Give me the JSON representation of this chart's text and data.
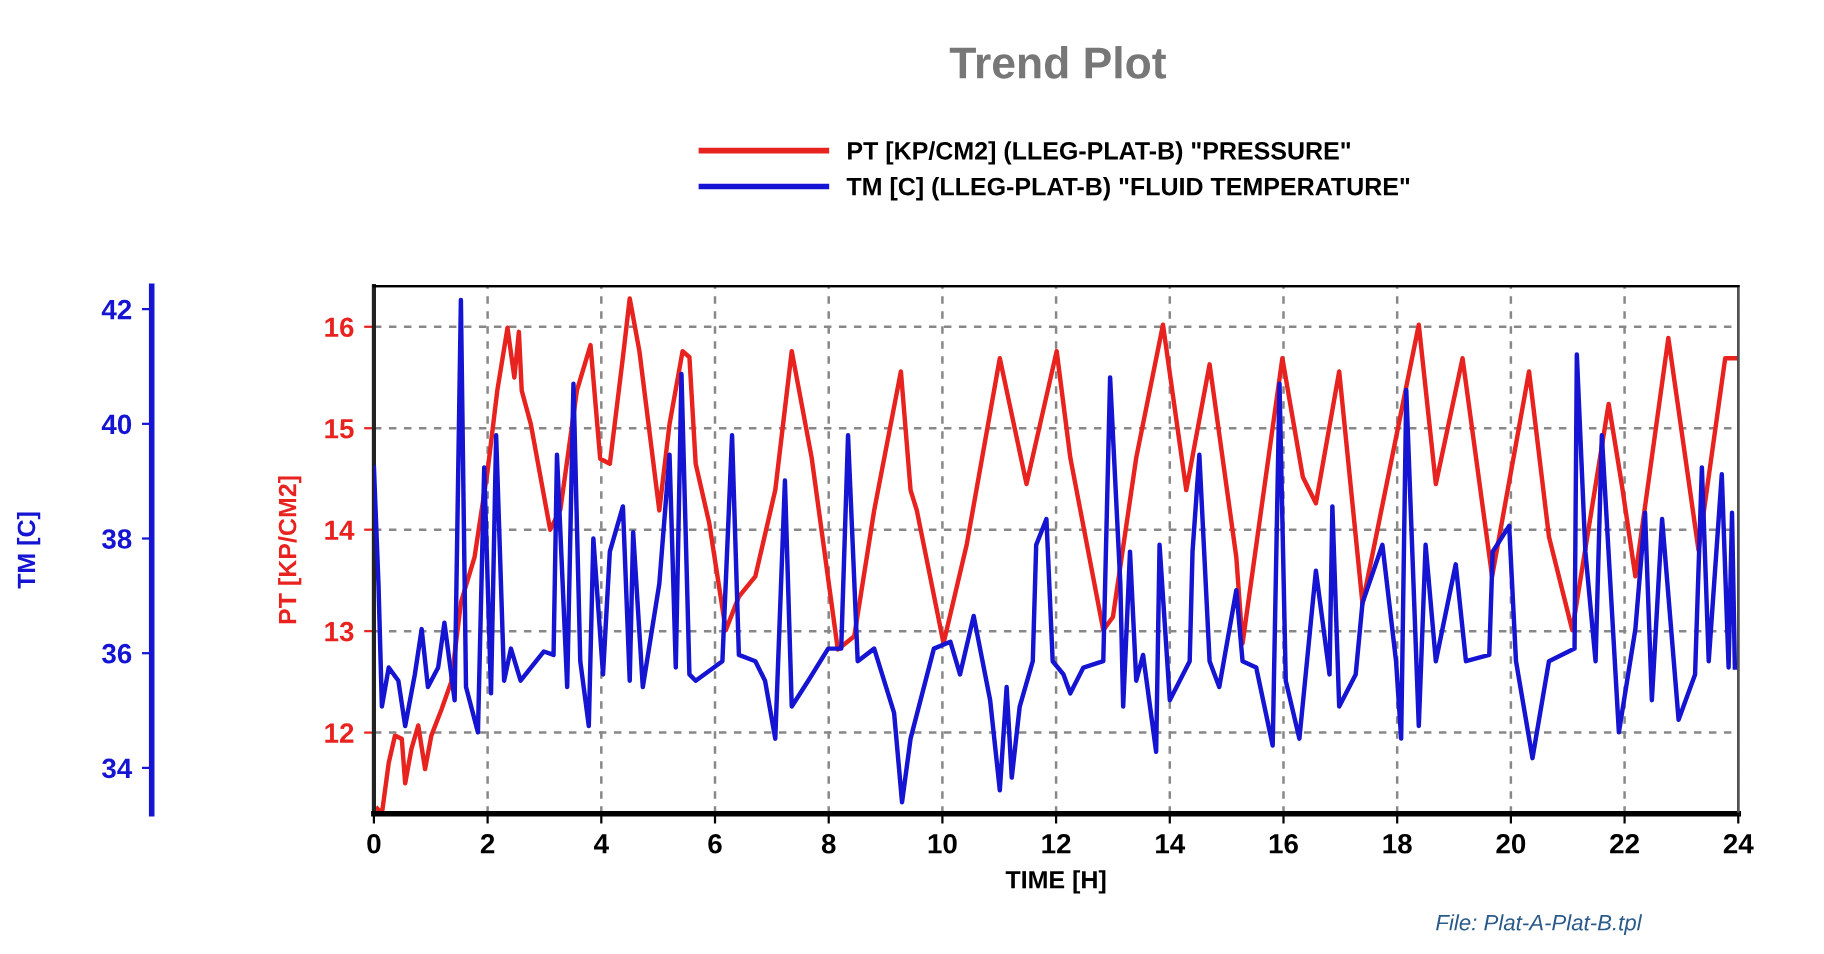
{
  "chart_data": {
    "type": "line",
    "title": "Trend Plot",
    "xlabel": "TIME [H]",
    "ylabel": "PT [KP/CM2]",
    "y2label": "TM [C]",
    "annotations": [
      "File: Plat-A-Plat-B.tpl"
    ],
    "xlim": [
      0,
      24
    ],
    "xticks": [
      0,
      2,
      4,
      6,
      8,
      10,
      12,
      14,
      16,
      18,
      20,
      22,
      24
    ],
    "ylim": [
      11.2,
      16.4
    ],
    "yticks": [
      12,
      13,
      14,
      15,
      16
    ],
    "y2lim": [
      33.2,
      42.4
    ],
    "y2ticks": [
      34,
      36,
      38,
      40,
      42
    ],
    "grid": true,
    "legend": "top",
    "line_style": "solid",
    "series": [
      {
        "name": "PT [KP/CM2] (LLEG-PLAT-B) \"PRESSURE\"",
        "color": "#e8231f",
        "x": [
          0.06,
          0.14,
          0.26,
          0.37,
          0.49,
          0.55,
          0.66,
          0.78,
          0.9,
          1.01,
          1.19,
          1.36,
          1.53,
          1.77,
          2.0,
          2.17,
          2.35,
          2.47,
          2.55,
          2.6,
          2.76,
          3.1,
          3.28,
          3.57,
          3.81,
          3.98,
          4.15,
          4.38,
          4.5,
          4.67,
          5.02,
          5.2,
          5.43,
          5.55,
          5.66,
          5.9,
          6.19,
          6.42,
          6.71,
          7.06,
          7.35,
          7.7,
          8.16,
          8.45,
          8.8,
          9.27,
          9.44,
          9.55,
          10.02,
          10.43,
          11.01,
          11.48,
          12.01,
          12.25,
          12.83,
          13.0,
          13.41,
          13.88,
          14.29,
          14.7,
          15.17,
          15.28,
          15.98,
          16.34,
          16.57,
          16.98,
          17.39,
          18.38,
          18.68,
          19.15,
          19.67,
          20.32,
          20.67,
          21.08,
          21.72,
          21.95,
          22.19,
          22.77,
          23.3,
          23.77,
          23.94
        ],
        "values": [
          11.25,
          11.2,
          11.7,
          11.97,
          11.94,
          11.5,
          11.84,
          12.07,
          11.64,
          11.97,
          12.23,
          12.5,
          13.28,
          13.73,
          14.58,
          15.37,
          15.99,
          15.5,
          15.95,
          15.37,
          15.04,
          14.0,
          14.2,
          15.37,
          15.82,
          14.7,
          14.65,
          15.7,
          16.28,
          15.76,
          14.19,
          15.04,
          15.76,
          15.7,
          14.65,
          14.06,
          13.01,
          13.34,
          13.54,
          14.39,
          15.76,
          14.71,
          12.82,
          12.95,
          14.19,
          15.56,
          14.39,
          14.19,
          12.88,
          13.86,
          15.69,
          14.45,
          15.76,
          14.71,
          13.01,
          13.14,
          14.71,
          16.02,
          14.39,
          15.63,
          13.73,
          12.88,
          15.69,
          14.52,
          14.26,
          15.56,
          13.27,
          16.02,
          14.45,
          15.69,
          13.54,
          15.56,
          13.93,
          13.01,
          15.24,
          14.45,
          13.54,
          15.89,
          13.8,
          15.69,
          15.69
        ]
      },
      {
        "name": "TM [C] (LLEG-PLAT-B) \"FLUID TEMPERATURE\"",
        "color": "#1414d2",
        "axis": "y2",
        "x": [
          0,
          0.08,
          0.14,
          0.26,
          0.43,
          0.55,
          0.72,
          0.84,
          0.95,
          1.13,
          1.24,
          1.42,
          1.53,
          1.62,
          1.83,
          1.94,
          2.06,
          2.15,
          2.29,
          2.41,
          2.58,
          2.99,
          3.16,
          3.22,
          3.4,
          3.51,
          3.63,
          3.78,
          3.86,
          4.03,
          4.15,
          4.38,
          4.5,
          4.56,
          4.73,
          5.02,
          5.2,
          5.31,
          5.41,
          5.55,
          5.66,
          6.13,
          6.3,
          6.42,
          6.71,
          6.88,
          7.06,
          7.23,
          7.35,
          7.64,
          7.99,
          8.22,
          8.34,
          8.51,
          8.8,
          9.15,
          9.29,
          9.44,
          9.85,
          10.14,
          10.31,
          10.55,
          10.84,
          11.01,
          11.13,
          11.22,
          11.36,
          11.59,
          11.65,
          11.83,
          11.94,
          12.13,
          12.25,
          12.48,
          12.83,
          12.95,
          13.13,
          13.18,
          13.3,
          13.41,
          13.53,
          13.76,
          13.82,
          14.0,
          14.35,
          14.4,
          14.52,
          14.7,
          14.87,
          15.17,
          15.28,
          15.52,
          15.81,
          15.93,
          16.04,
          16.28,
          16.57,
          16.81,
          16.86,
          16.98,
          17.27,
          17.39,
          17.74,
          17.98,
          18.07,
          18.16,
          18.38,
          18.5,
          18.68,
          19.03,
          19.21,
          19.62,
          19.68,
          19.97,
          20.09,
          20.38,
          20.67,
          21.12,
          21.16,
          21.31,
          21.49,
          21.6,
          21.9,
          22.19,
          22.36,
          22.48,
          22.66,
          22.95,
          23.24,
          23.36,
          23.48,
          23.71,
          23.83,
          23.89,
          23.94
        ],
        "values": [
          39.24,
          37.21,
          35.07,
          35.75,
          35.52,
          34.73,
          35.63,
          36.42,
          35.41,
          35.75,
          36.53,
          35.18,
          42.16,
          35.41,
          34.62,
          39.24,
          35.3,
          39.8,
          35.52,
          36.08,
          35.52,
          36.03,
          35.97,
          39.46,
          35.41,
          40.7,
          35.86,
          34.73,
          38.0,
          35.63,
          37.77,
          38.56,
          35.52,
          38.11,
          35.41,
          37.21,
          39.46,
          35.75,
          40.87,
          35.63,
          35.52,
          35.86,
          39.8,
          35.97,
          35.86,
          35.52,
          34.51,
          39.01,
          35.07,
          35.52,
          36.08,
          36.08,
          39.8,
          35.86,
          36.08,
          34.96,
          33.4,
          34.51,
          36.08,
          36.2,
          35.63,
          36.65,
          35.18,
          33.61,
          35.41,
          33.83,
          35.07,
          35.86,
          37.89,
          38.34,
          35.86,
          35.63,
          35.3,
          35.75,
          35.86,
          40.81,
          37.21,
          35.07,
          37.77,
          35.52,
          35.97,
          34.28,
          37.89,
          35.18,
          35.86,
          37.77,
          39.46,
          35.86,
          35.41,
          37.1,
          35.86,
          35.75,
          34.39,
          40.7,
          35.52,
          34.51,
          37.44,
          35.63,
          38.56,
          35.07,
          35.63,
          36.88,
          37.89,
          35.86,
          34.51,
          40.59,
          34.73,
          37.89,
          35.86,
          37.55,
          35.86,
          35.97,
          37.77,
          38.22,
          35.86,
          34.17,
          35.86,
          36.08,
          41.21,
          37.77,
          35.86,
          39.8,
          34.62,
          36.42,
          38.45,
          35.18,
          38.34,
          34.84,
          35.63,
          39.24,
          35.86,
          39.12,
          35.75,
          38.45,
          35.75
        ]
      }
    ]
  }
}
